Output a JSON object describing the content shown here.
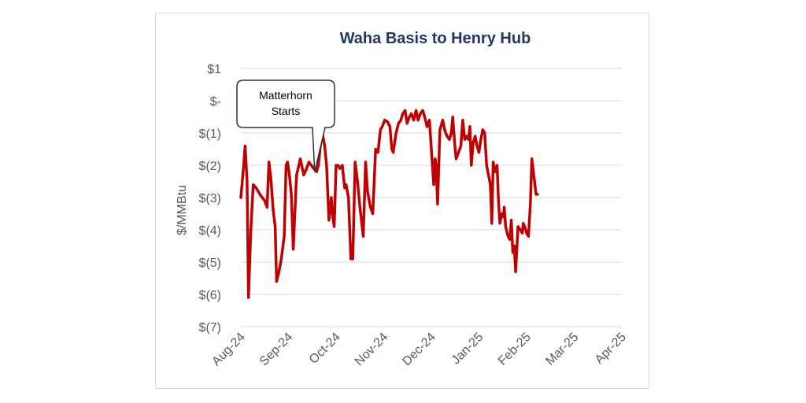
{
  "chart_data": {
    "type": "line",
    "title": "Waha Basis to Henry Hub",
    "ylabel": "$/MMBtu",
    "xlabel": "",
    "ylim": [
      -7,
      1
    ],
    "y_ticks": [
      {
        "value": 1,
        "label": "$1"
      },
      {
        "value": 0,
        "label": "$-"
      },
      {
        "value": -1,
        "label": "$(1)"
      },
      {
        "value": -2,
        "label": "$(2)"
      },
      {
        "value": -3,
        "label": "$(3)"
      },
      {
        "value": -4,
        "label": "$(4)"
      },
      {
        "value": -5,
        "label": "$(5)"
      },
      {
        "value": -6,
        "label": "$(6)"
      },
      {
        "value": -7,
        "label": "$(7)"
      }
    ],
    "x_ticks": [
      "Aug-24",
      "Sep-24",
      "Oct-24",
      "Nov-24",
      "Dec-24",
      "Jan-25",
      "Feb-25",
      "Mar-25",
      "Apr-25"
    ],
    "grid": true,
    "series_color": "#c00000",
    "series": [
      {
        "values": [
          [
            0.0,
            -3.0
          ],
          [
            0.06,
            -2.0
          ],
          [
            0.09,
            -1.4
          ],
          [
            0.13,
            -2.5
          ],
          [
            0.16,
            -6.1
          ],
          [
            0.21,
            -4.0
          ],
          [
            0.26,
            -2.6
          ],
          [
            0.32,
            -2.7
          ],
          [
            0.4,
            -2.9
          ],
          [
            0.5,
            -3.1
          ],
          [
            0.55,
            -3.3
          ],
          [
            0.59,
            -1.9
          ],
          [
            0.63,
            -2.4
          ],
          [
            0.68,
            -3.4
          ],
          [
            0.72,
            -3.9
          ],
          [
            0.75,
            -5.6
          ],
          [
            0.8,
            -5.3
          ],
          [
            0.85,
            -4.9
          ],
          [
            0.91,
            -4.2
          ],
          [
            0.95,
            -2.0
          ],
          [
            0.98,
            -1.9
          ],
          [
            1.02,
            -2.3
          ],
          [
            1.06,
            -2.9
          ],
          [
            1.1,
            -4.6
          ],
          [
            1.13,
            -3.6
          ],
          [
            1.17,
            -2.3
          ],
          [
            1.25,
            -1.8
          ],
          [
            1.32,
            -2.3
          ],
          [
            1.38,
            -2.1
          ],
          [
            1.43,
            -1.9
          ],
          [
            1.48,
            -2.0
          ],
          [
            1.53,
            -2.1
          ],
          [
            1.59,
            -2.2
          ],
          [
            1.63,
            -2.0
          ],
          [
            1.67,
            -1.4
          ],
          [
            1.71,
            -1.0
          ],
          [
            1.76,
            -1.4
          ],
          [
            1.8,
            -2.0
          ],
          [
            1.85,
            -3.7
          ],
          [
            1.88,
            -3.3
          ],
          [
            1.9,
            -3.0
          ],
          [
            1.93,
            -3.6
          ],
          [
            1.96,
            -3.9
          ],
          [
            2.0,
            -2.0
          ],
          [
            2.04,
            -2.0
          ],
          [
            2.08,
            -2.1
          ],
          [
            2.13,
            -2.0
          ],
          [
            2.18,
            -2.7
          ],
          [
            2.21,
            -2.6
          ],
          [
            2.26,
            -3.0
          ],
          [
            2.31,
            -4.9
          ],
          [
            2.35,
            -4.9
          ],
          [
            2.4,
            -1.9
          ],
          [
            2.45,
            -2.5
          ],
          [
            2.5,
            -3.3
          ],
          [
            2.57,
            -4.2
          ],
          [
            2.62,
            -1.9
          ],
          [
            2.66,
            -2.8
          ],
          [
            2.72,
            -3.3
          ],
          [
            2.77,
            -3.5
          ],
          [
            2.83,
            -1.5
          ],
          [
            2.88,
            -1.6
          ],
          [
            2.93,
            -0.9
          ],
          [
            2.97,
            -0.8
          ],
          [
            3.02,
            -0.6
          ],
          [
            3.08,
            -0.65
          ],
          [
            3.13,
            -0.8
          ],
          [
            3.17,
            -1.5
          ],
          [
            3.2,
            -1.6
          ],
          [
            3.26,
            -1.0
          ],
          [
            3.31,
            -0.7
          ],
          [
            3.36,
            -0.6
          ],
          [
            3.4,
            -0.4
          ],
          [
            3.45,
            -0.3
          ],
          [
            3.49,
            -0.7
          ],
          [
            3.54,
            -0.5
          ],
          [
            3.58,
            -0.4
          ],
          [
            3.63,
            -0.6
          ],
          [
            3.68,
            -0.3
          ],
          [
            3.72,
            -0.6
          ],
          [
            3.77,
            -0.4
          ],
          [
            3.82,
            -0.3
          ],
          [
            3.86,
            -0.5
          ],
          [
            3.91,
            -0.8
          ],
          [
            3.96,
            -0.6
          ],
          [
            4.0,
            -1.5
          ],
          [
            4.05,
            -2.6
          ],
          [
            4.08,
            -1.8
          ],
          [
            4.1,
            -2.0
          ],
          [
            4.13,
            -3.2
          ],
          [
            4.18,
            -0.9
          ],
          [
            4.24,
            -0.6
          ],
          [
            4.28,
            -0.9
          ],
          [
            4.33,
            -1.1
          ],
          [
            4.38,
            -1.2
          ],
          [
            4.42,
            -1.0
          ],
          [
            4.45,
            -0.5
          ],
          [
            4.49,
            -1.3
          ],
          [
            4.52,
            -1.8
          ],
          [
            4.57,
            -1.6
          ],
          [
            4.62,
            -1.4
          ],
          [
            4.66,
            -0.6
          ],
          [
            4.7,
            -1.2
          ],
          [
            4.74,
            -1.1
          ],
          [
            4.78,
            -1.2
          ],
          [
            4.81,
            -0.8
          ],
          [
            4.84,
            -2.0
          ],
          [
            4.88,
            -1.3
          ],
          [
            4.92,
            -1.1
          ],
          [
            4.96,
            -1.4
          ],
          [
            5.0,
            -1.6
          ],
          [
            5.04,
            -1.2
          ],
          [
            5.08,
            -0.9
          ],
          [
            5.12,
            -1.0
          ],
          [
            5.16,
            -2.0
          ],
          [
            5.2,
            -2.3
          ],
          [
            5.24,
            -2.6
          ],
          [
            5.27,
            -3.8
          ],
          [
            5.3,
            -1.9
          ],
          [
            5.34,
            -2.2
          ],
          [
            5.38,
            -2.0
          ],
          [
            5.41,
            -3.1
          ],
          [
            5.44,
            -3.8
          ],
          [
            5.48,
            -3.5
          ],
          [
            5.51,
            -3.6
          ],
          [
            5.53,
            -3.3
          ],
          [
            5.56,
            -3.9
          ],
          [
            5.61,
            -4.2
          ],
          [
            5.65,
            -4.3
          ],
          [
            5.68,
            -3.7
          ],
          [
            5.71,
            -4.7
          ],
          [
            5.74,
            -4.5
          ],
          [
            5.77,
            -5.3
          ],
          [
            5.82,
            -3.9
          ],
          [
            5.87,
            -4.0
          ],
          [
            5.91,
            -4.1
          ],
          [
            5.93,
            -3.8
          ],
          [
            5.96,
            -3.9
          ],
          [
            6.0,
            -4.1
          ],
          [
            6.04,
            -4.2
          ],
          [
            6.08,
            -3.2
          ],
          [
            6.11,
            -1.8
          ],
          [
            6.15,
            -2.3
          ],
          [
            6.2,
            -2.9
          ],
          [
            6.23,
            -2.9
          ]
        ]
      }
    ],
    "callout": {
      "lines": [
        "Matterhorn",
        "Starts"
      ],
      "points_to": [
        1.55,
        -2.2
      ]
    }
  }
}
